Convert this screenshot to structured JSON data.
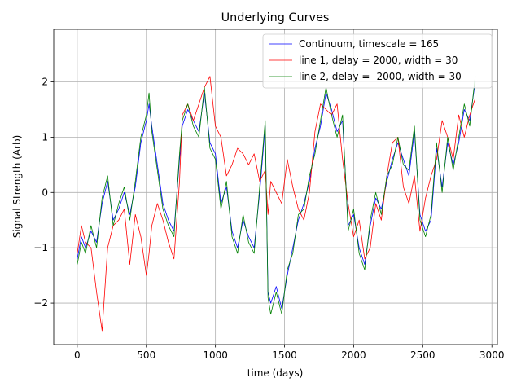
{
  "chart_data": {
    "type": "line",
    "title": "Underlying Curves",
    "xlabel": "time (days)",
    "ylabel": "Signal Strength (Arb)",
    "xlim": [
      -170,
      3040
    ],
    "ylim": [
      -2.75,
      2.95
    ],
    "xticks": [
      0,
      500,
      1000,
      1500,
      2000,
      2500,
      3000
    ],
    "yticks": [
      -2,
      -1,
      0,
      1,
      2
    ],
    "grid": true,
    "legend": "top-right",
    "series": [
      {
        "name": "Continuum, timescale = 165",
        "color": "#0000ff",
        "x": [
          0,
          30,
          60,
          100,
          140,
          180,
          220,
          260,
          300,
          340,
          380,
          420,
          460,
          500,
          520,
          540,
          580,
          620,
          660,
          700,
          740,
          760,
          800,
          840,
          880,
          920,
          960,
          1000,
          1040,
          1080,
          1120,
          1160,
          1200,
          1240,
          1280,
          1320,
          1360,
          1380,
          1400,
          1440,
          1480,
          1520,
          1560,
          1600,
          1640,
          1680,
          1720,
          1760,
          1800,
          1840,
          1880,
          1920,
          1960,
          2000,
          2040,
          2080,
          2120,
          2160,
          2200,
          2240,
          2280,
          2320,
          2360,
          2400,
          2440,
          2480,
          2520,
          2560,
          2600,
          2640,
          2680,
          2720,
          2760,
          2800,
          2840,
          2880
        ],
        "y": [
          -1.2,
          -0.8,
          -1.0,
          -0.7,
          -0.9,
          -0.2,
          0.2,
          -0.5,
          -0.3,
          0.0,
          -0.4,
          0.1,
          0.9,
          1.3,
          1.6,
          1.2,
          0.5,
          -0.2,
          -0.5,
          -0.7,
          0.6,
          1.2,
          1.5,
          1.3,
          1.1,
          1.8,
          0.9,
          0.7,
          -0.2,
          0.1,
          -0.7,
          -1.0,
          -0.5,
          -0.8,
          -1.0,
          0.0,
          1.2,
          -1.8,
          -2.0,
          -1.7,
          -2.1,
          -1.5,
          -1.0,
          -0.5,
          -0.2,
          0.2,
          0.8,
          1.2,
          1.8,
          1.5,
          1.1,
          1.3,
          -0.6,
          -0.4,
          -1.0,
          -1.3,
          -0.6,
          -0.1,
          -0.3,
          0.2,
          0.6,
          0.9,
          0.6,
          0.3,
          1.1,
          -0.4,
          -0.7,
          -0.5,
          0.8,
          0.1,
          0.9,
          0.5,
          0.9,
          1.5,
          1.3,
          2.0
        ]
      },
      {
        "name": "line 1, delay = 2000, width = 30",
        "color": "#ff0000",
        "x": [
          0,
          30,
          60,
          100,
          140,
          180,
          220,
          260,
          300,
          340,
          380,
          420,
          460,
          500,
          520,
          540,
          580,
          620,
          660,
          700,
          740,
          760,
          800,
          840,
          880,
          920,
          960,
          1000,
          1040,
          1080,
          1120,
          1160,
          1200,
          1240,
          1280,
          1320,
          1360,
          1380,
          1400,
          1440,
          1480,
          1520,
          1560,
          1600,
          1640,
          1680,
          1720,
          1760,
          1800,
          1840,
          1880,
          1920,
          1960,
          2000,
          2040,
          2080,
          2120,
          2160,
          2200,
          2240,
          2280,
          2320,
          2360,
          2400,
          2440,
          2480,
          2520,
          2560,
          2600,
          2640,
          2680,
          2720,
          2760,
          2800,
          2840,
          2880
        ],
        "y": [
          -1.1,
          -0.6,
          -0.9,
          -1.0,
          -1.8,
          -2.5,
          -1.0,
          -0.6,
          -0.5,
          -0.3,
          -1.3,
          -0.4,
          -0.8,
          -1.5,
          -1.1,
          -0.6,
          -0.2,
          -0.5,
          -0.9,
          -1.2,
          0.2,
          1.4,
          1.6,
          1.3,
          1.6,
          1.9,
          2.1,
          1.2,
          1.0,
          0.3,
          0.5,
          0.8,
          0.7,
          0.5,
          0.7,
          0.2,
          0.4,
          -0.4,
          0.2,
          0.0,
          -0.2,
          0.6,
          0.1,
          -0.3,
          -0.5,
          0.0,
          1.1,
          1.6,
          1.5,
          1.4,
          1.6,
          0.6,
          -0.2,
          -0.8,
          -0.5,
          -1.2,
          -1.0,
          -0.2,
          -0.5,
          0.3,
          0.9,
          1.0,
          0.1,
          -0.2,
          0.3,
          -0.7,
          -0.1,
          0.3,
          0.6,
          1.3,
          1.0,
          0.6,
          1.4,
          1.0,
          1.4,
          1.7
        ]
      },
      {
        "name": "line 2, delay = -2000, width = 30",
        "color": "#008000",
        "x": [
          0,
          30,
          60,
          100,
          140,
          180,
          220,
          260,
          300,
          340,
          380,
          420,
          460,
          500,
          520,
          540,
          580,
          620,
          660,
          700,
          740,
          760,
          800,
          840,
          880,
          920,
          960,
          1000,
          1040,
          1080,
          1120,
          1160,
          1200,
          1240,
          1280,
          1320,
          1360,
          1380,
          1400,
          1440,
          1480,
          1520,
          1560,
          1600,
          1640,
          1680,
          1720,
          1760,
          1800,
          1840,
          1880,
          1920,
          1960,
          2000,
          2040,
          2080,
          2120,
          2160,
          2200,
          2240,
          2280,
          2320,
          2360,
          2400,
          2440,
          2480,
          2520,
          2560,
          2600,
          2640,
          2680,
          2720,
          2760,
          2800,
          2840,
          2880
        ],
        "y": [
          -1.3,
          -0.9,
          -1.1,
          -0.6,
          -1.0,
          -0.1,
          0.3,
          -0.6,
          -0.2,
          0.1,
          -0.5,
          0.2,
          1.0,
          1.4,
          1.8,
          1.1,
          0.4,
          -0.3,
          -0.6,
          -0.8,
          0.7,
          1.3,
          1.6,
          1.2,
          1.0,
          1.9,
          0.8,
          0.6,
          -0.3,
          0.2,
          -0.8,
          -1.1,
          -0.4,
          -0.9,
          -1.1,
          0.1,
          1.3,
          -1.9,
          -2.2,
          -1.8,
          -2.2,
          -1.4,
          -1.1,
          -0.4,
          -0.3,
          0.3,
          0.7,
          1.3,
          1.9,
          1.4,
          1.0,
          1.4,
          -0.7,
          -0.3,
          -1.1,
          -1.4,
          -0.5,
          0.0,
          -0.4,
          0.3,
          0.5,
          1.0,
          0.5,
          0.4,
          1.2,
          -0.5,
          -0.8,
          -0.4,
          0.9,
          0.0,
          1.0,
          0.4,
          1.0,
          1.6,
          1.2,
          2.1
        ]
      }
    ]
  }
}
